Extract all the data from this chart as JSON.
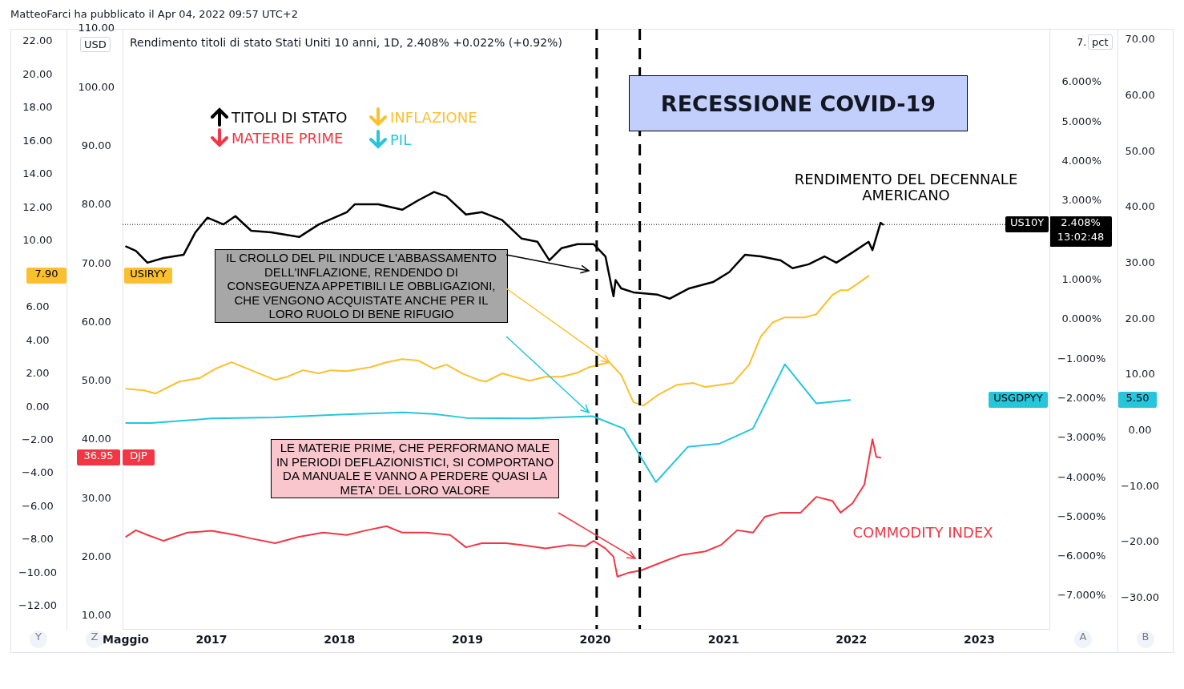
{
  "chart_data": [
    {
      "type": "line",
      "title": "RECESSIONE COVID-19",
      "subtitle": "Rendimento titoli di stato Stati Uniti 10 anni, 1D, 2.408% +0.022% (+0.92%)",
      "y3label": "USD",
      "y2label": "pct",
      "legend": "top left",
      "marker": "none",
      "grid": false,
      "xlim": [
        "2016-04-22",
        "2023-07-20"
      ],
      "xticks": [
        {
          "value": "2016-05",
          "label": "Maggio"
        },
        {
          "value": "2017",
          "label": "2017"
        },
        {
          "value": "2018",
          "label": "2018"
        },
        {
          "value": "2019",
          "label": "2019"
        },
        {
          "value": "2020",
          "label": "2020"
        },
        {
          "value": "2021",
          "label": "2021"
        },
        {
          "value": "2022",
          "label": "2022"
        },
        {
          "value": "2023",
          "label": "2023"
        }
      ],
      "ylim": [
        -13.35,
        22.77
      ],
      "yticks": [
        {
          "value": 22,
          "label": "22.00"
        },
        {
          "value": 20,
          "label": "20.00"
        },
        {
          "value": 18,
          "label": "18.00"
        },
        {
          "value": 16,
          "label": "16.00"
        },
        {
          "value": 14,
          "label": "14.00"
        },
        {
          "value": 12,
          "label": "12.00"
        },
        {
          "value": 10,
          "label": "10.00"
        },
        {
          "value": 6,
          "label": "6.00"
        },
        {
          "value": 4,
          "label": "4.00"
        },
        {
          "value": 2,
          "label": "2.00"
        },
        {
          "value": 0,
          "label": "0.00"
        },
        {
          "value": -2,
          "label": "−2.00"
        },
        {
          "value": -4,
          "label": "−4.00"
        },
        {
          "value": -6,
          "label": "−6.00"
        },
        {
          "value": -8,
          "label": "−8.00"
        },
        {
          "value": -10,
          "label": "−10.00"
        },
        {
          "value": -12,
          "label": "−12.00"
        }
      ],
      "y3lim": [
        7.8,
        110
      ],
      "y3ticks": [
        {
          "value": 110,
          "label": "110.00"
        },
        {
          "value": 100,
          "label": "100.00"
        },
        {
          "value": 90,
          "label": "90.00"
        },
        {
          "value": 80,
          "label": "80.00"
        },
        {
          "value": 70,
          "label": "70.00"
        },
        {
          "value": 60,
          "label": "60.00"
        },
        {
          "value": 50,
          "label": "50.00"
        },
        {
          "value": 40,
          "label": "40.00"
        },
        {
          "value": 30,
          "label": "30.00"
        },
        {
          "value": 20,
          "label": "20.00"
        },
        {
          "value": 10,
          "label": "10.00"
        }
      ],
      "y2lim": [
        -7.83,
        7.36
      ],
      "y2ticks": [
        {
          "value": 7,
          "label": "7."
        },
        {
          "value": 6,
          "label": "6.000%"
        },
        {
          "value": 5,
          "label": "5.000%"
        },
        {
          "value": 4,
          "label": "4.000%"
        },
        {
          "value": 3,
          "label": "3.000%"
        },
        {
          "value": 1,
          "label": "1.000%"
        },
        {
          "value": 0,
          "label": "0.000%"
        },
        {
          "value": -1,
          "label": "−1.000%"
        },
        {
          "value": -2,
          "label": "−2.000%"
        },
        {
          "value": -3,
          "label": "−3.000%"
        },
        {
          "value": -4,
          "label": "−4.000%"
        },
        {
          "value": -5,
          "label": "−5.000%"
        },
        {
          "value": -6,
          "label": "−6.000%"
        },
        {
          "value": -7,
          "label": "−7.000%"
        }
      ],
      "series": [
        {
          "name": "TITOLI DI STATO",
          "color": "#000000",
          "axis": "y2",
          "x": [
            "2016-05-02",
            "2016-05-30",
            "2016-07-02",
            "2016-08-17",
            "2016-10-13",
            "2016-11-16",
            "2016-12-20",
            "2017-02-04",
            "2017-03-10",
            "2017-04-24",
            "2017-06-20",
            "2017-09-08",
            "2017-11-03",
            "2018-01-22",
            "2018-02-14",
            "2018-04-22",
            "2018-06-29",
            "2018-08-14",
            "2018-09-28",
            "2018-11-02",
            "2018-12-28",
            "2019-02-12",
            "2019-04-10",
            "2019-06-05",
            "2019-07-20",
            "2019-08-23",
            "2019-09-27",
            "2019-11-11",
            "2019-12-27",
            "2020-01-30",
            "2020-02-22",
            "2020-02-28",
            "2020-03-15",
            "2020-04-19",
            "2020-06-27",
            "2020-07-31",
            "2020-09-25",
            "2020-12-02",
            "2021-01-17",
            "2021-03-03",
            "2021-04-17",
            "2021-06-13",
            "2021-07-17",
            "2021-09-01",
            "2021-10-16",
            "2021-11-19",
            "2022-01-04",
            "2022-02-19",
            "2022-03-02",
            "2022-03-25",
            "2022-04-01"
          ],
          "values": [
            1.85,
            1.74,
            1.44,
            1.56,
            1.64,
            2.21,
            2.58,
            2.41,
            2.62,
            2.25,
            2.21,
            2.09,
            2.41,
            2.72,
            2.92,
            2.92,
            2.78,
            3.02,
            3.23,
            3.12,
            2.66,
            2.72,
            2.52,
            2.05,
            1.97,
            1.5,
            1.81,
            1.91,
            1.91,
            1.6,
            0.59,
            1.0,
            0.79,
            0.69,
            0.63,
            0.53,
            0.79,
            0.95,
            1.2,
            1.64,
            1.6,
            1.5,
            1.3,
            1.4,
            1.6,
            1.44,
            1.7,
            1.97,
            1.76,
            2.45,
            2.408
          ]
        },
        {
          "name": "INFLAZIONE",
          "color": "#fbc02d",
          "x": [
            "2016-05-02",
            "2016-06-22",
            "2016-07-25",
            "2016-10-01",
            "2016-11-27",
            "2017-01-12",
            "2017-02-27",
            "2017-04-24",
            "2017-07-01",
            "2017-08-05",
            "2017-09-19",
            "2017-11-03",
            "2017-12-07",
            "2018-01-22",
            "2018-03-31",
            "2018-05-15",
            "2018-06-29",
            "2018-08-14",
            "2018-09-28",
            "2018-11-02",
            "2018-12-17",
            "2019-02-01",
            "2019-02-23",
            "2019-04-10",
            "2019-05-14",
            "2019-06-28",
            "2019-08-12",
            "2019-09-27",
            "2019-11-11",
            "2019-12-15",
            "2020-02-10",
            "2020-03-15",
            "2020-04-19",
            "2020-05-18",
            "2020-06-27",
            "2020-08-22",
            "2020-10-07",
            "2020-11-10",
            "2020-12-25",
            "2021-01-28",
            "2021-03-15",
            "2021-04-17",
            "2021-05-22",
            "2021-06-25",
            "2021-08-20",
            "2021-09-23",
            "2021-11-08",
            "2021-12-01",
            "2021-12-23",
            "2022-02-19"
          ],
          "values": [
            1.11,
            1.01,
            0.82,
            1.54,
            1.74,
            2.31,
            2.7,
            2.22,
            1.64,
            1.83,
            2.22,
            2.03,
            2.22,
            2.17,
            2.41,
            2.7,
            2.89,
            2.8,
            2.31,
            2.56,
            2.03,
            1.64,
            1.54,
            2.03,
            1.83,
            1.59,
            1.83,
            1.83,
            2.07,
            2.41,
            2.7,
            1.93,
            0.29,
            0.1,
            0.72,
            1.35,
            1.45,
            1.21,
            1.35,
            1.45,
            2.56,
            4.24,
            5.11,
            5.4,
            5.4,
            5.59,
            6.75,
            7.04,
            7.04,
            7.9
          ]
        },
        {
          "name": "MATERIE PRIME",
          "color": "#f23645",
          "axis": "y3",
          "x": [
            "2016-05-02",
            "2016-05-30",
            "2016-07-02",
            "2016-08-17",
            "2016-10-24",
            "2017-01-01",
            "2017-03-10",
            "2017-04-24",
            "2017-07-01",
            "2017-09-08",
            "2017-11-15",
            "2018-01-22",
            "2018-03-20",
            "2018-05-15",
            "2018-06-29",
            "2018-09-06",
            "2018-11-13",
            "2018-12-28",
            "2019-02-12",
            "2019-04-21",
            "2019-06-05",
            "2019-08-12",
            "2019-10-19",
            "2019-12-04",
            "2019-12-27",
            "2020-01-30",
            "2020-02-22",
            "2020-03-04",
            "2020-04-07",
            "2020-05-12",
            "2020-07-19",
            "2020-09-03",
            "2020-11-10",
            "2020-12-25",
            "2021-02-09",
            "2021-03-26",
            "2021-04-29",
            "2021-06-13",
            "2021-08-09",
            "2021-09-23",
            "2021-11-08",
            "2021-12-01",
            "2022-01-04",
            "2022-02-07",
            "2022-03-02",
            "2022-03-13",
            "2022-03-25"
          ],
          "values": [
            23.5,
            24.6,
            23.8,
            22.8,
            24.2,
            24.5,
            23.8,
            23.2,
            22.4,
            23.5,
            24.2,
            23.8,
            24.6,
            25.3,
            24.2,
            24.2,
            23.8,
            21.7,
            22.4,
            22.4,
            22.1,
            21.5,
            22.1,
            21.9,
            22.8,
            21.5,
            20.1,
            16.7,
            17.4,
            17.8,
            19.4,
            20.4,
            21.0,
            22.1,
            24.6,
            24.2,
            26.9,
            27.6,
            27.6,
            30.3,
            29.6,
            27.6,
            29.2,
            32.4,
            40.1,
            37.1,
            36.95
          ]
        }
      ],
      "ref_lines": [
        {
          "axis": "x",
          "value": "2020-01-05",
          "color": "#000000",
          "line_style": "dashed"
        },
        {
          "axis": "x",
          "value": "2020-05-07",
          "color": "#000000",
          "line_style": "dashed"
        },
        {
          "axis": "y2",
          "value": 2.408,
          "color": "#000000",
          "line_style": "dotted"
        }
      ],
      "annotations": [
        "MatteoFarci ha pubblicato il Apr 04, 2022 09:57 UTC+2",
        "RENDIMENTO DEL DECENNALE AMERICANO",
        "COMMODITY INDEX",
        {
          "text": "IL CROLLO DEL PIL INDUCE L'ABBASSAMENTO DELL'INFLAZIONE, RENDENDO DI CONSEGUENZA APPETIBILI LE OBBLIGAZIONI, CHE VENGONO ACQUISTATE ANCHE PER IL LORO RUOLO DI BENE RIFUGIO",
          "x": "2020-02-10",
          "y": 2.7
        },
        "LE MATERIE PRIME, CHE PERFORMANO MALE IN PERIODI DEFLAZIONISTICI, SI COMPORTANO DA MANUALE E VANNO A PERDERE QUASI LA META' DEL LORO VALORE",
        "7.90",
        "USIRYY",
        "36.95",
        "DJP",
        "US10Y",
        "2.408%",
        "13:02:48",
        "Y",
        "Z",
        "A",
        "B"
      ]
    },
    {
      "type": "line",
      "legend": "top left",
      "marker": "none",
      "grid": false,
      "tick_labels": "y",
      "xlim": [
        "2016-04-22",
        "2023-07-20"
      ],
      "ylim": [
        -35.5,
        72
      ],
      "yticks": [
        {
          "value": 70,
          "label": "70.00"
        },
        {
          "value": 60,
          "label": "60.00"
        },
        {
          "value": 50,
          "label": "50.00"
        },
        {
          "value": 40,
          "label": "40.00"
        },
        {
          "value": 30,
          "label": "30.00"
        },
        {
          "value": 20,
          "label": "20.00"
        },
        {
          "value": 10,
          "label": "10.00"
        },
        {
          "value": 0,
          "label": "0.00"
        },
        {
          "value": -10,
          "label": "−10.00"
        },
        {
          "value": -20,
          "label": "−20.00"
        },
        {
          "value": -30,
          "label": "−30.00"
        }
      ],
      "series": [
        {
          "name": "PIL",
          "color": "#26c6da",
          "x": [
            "2016-05-02",
            "2016-07-13",
            "2017-01-01",
            "2017-07-01",
            "2017-12-31",
            "2018-06-29",
            "2018-09-28",
            "2018-12-28",
            "2019-06-28",
            "2019-12-24",
            "2020-03-22",
            "2020-06-22",
            "2020-09-21",
            "2020-12-21",
            "2021-03-26",
            "2021-06-25",
            "2021-09-23",
            "2021-12-28"
          ],
          "values": [
            1.4,
            1.4,
            2.2,
            2.4,
            2.9,
            3.3,
            3.0,
            2.3,
            2.2,
            2.6,
            0.4,
            -9.2,
            -2.9,
            -2.3,
            0.4,
            11.9,
            4.9,
            5.5
          ]
        }
      ],
      "annotations": [
        "5.50",
        "USGDPYY"
      ]
    }
  ]
}
